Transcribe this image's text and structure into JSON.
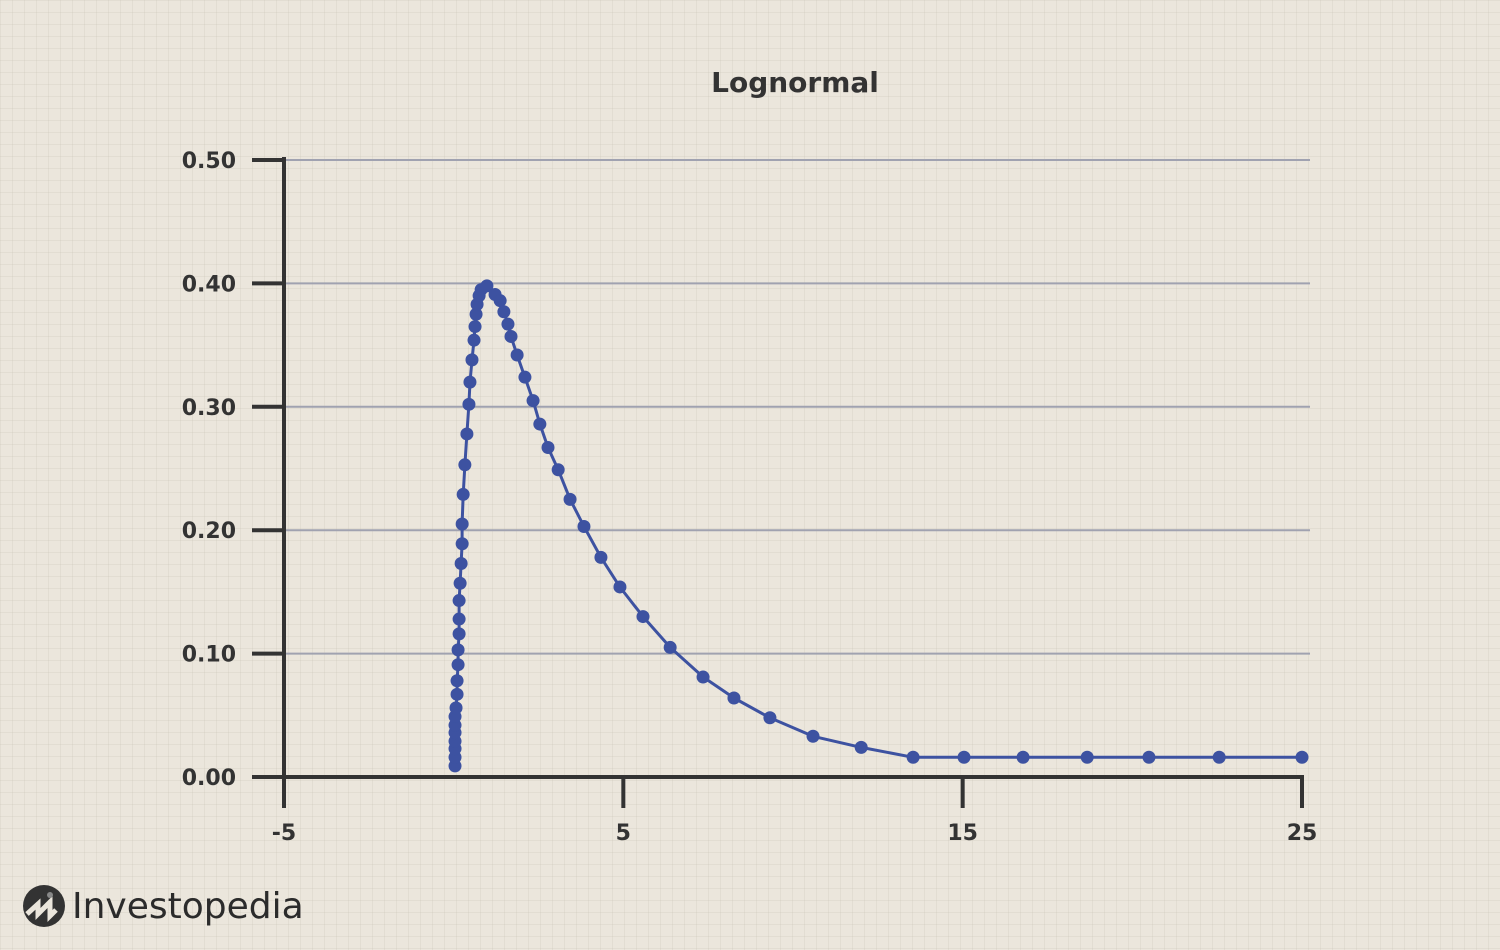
{
  "chart_data": {
    "type": "line",
    "title": "Lognormal",
    "xlabel": "",
    "ylabel": "",
    "xlim": [
      -5,
      25
    ],
    "ylim": [
      0,
      0.5
    ],
    "x_ticks": [
      "-5",
      "5",
      "15",
      "25"
    ],
    "x_tick_values": [
      -5,
      5,
      15,
      25
    ],
    "y_ticks": [
      "0.00",
      "0.10",
      "0.20",
      "0.30",
      "0.40",
      "0.50"
    ],
    "y_tick_values": [
      0,
      0.1,
      0.2,
      0.3,
      0.4,
      0.5
    ],
    "grid": "horizontal",
    "markers": true,
    "colors": {
      "series": "#3d52a1",
      "axis": "#333333",
      "grid": "#a0a2b0",
      "background": "#ebe6dc"
    },
    "series": [
      {
        "x": [
          0.04,
          0.04,
          0.04,
          0.04,
          0.04,
          0.04,
          0.04,
          0.07,
          0.1,
          0.1,
          0.13,
          0.13,
          0.16,
          0.16,
          0.16,
          0.19,
          0.22,
          0.25,
          0.25,
          0.28,
          0.33,
          0.39,
          0.45,
          0.48,
          0.54,
          0.6,
          0.63,
          0.66,
          0.69,
          0.75,
          0.81,
          0.98,
          1.22,
          1.37,
          1.48,
          1.6,
          1.69,
          1.87,
          2.1,
          2.34,
          2.54,
          2.78,
          3.08,
          3.43,
          3.84,
          4.34,
          4.9,
          5.58,
          6.38,
          7.35,
          8.26,
          9.32,
          10.59,
          12.01,
          13.54,
          15.04,
          16.78,
          18.67,
          20.49,
          22.56,
          25.0
        ],
        "y": [
          0.009,
          0.016,
          0.023,
          0.029,
          0.036,
          0.042,
          0.049,
          0.056,
          0.067,
          0.078,
          0.091,
          0.103,
          0.116,
          0.128,
          0.143,
          0.157,
          0.173,
          0.189,
          0.205,
          0.229,
          0.253,
          0.278,
          0.302,
          0.32,
          0.338,
          0.354,
          0.365,
          0.375,
          0.383,
          0.39,
          0.395,
          0.398,
          0.391,
          0.386,
          0.377,
          0.367,
          0.357,
          0.342,
          0.324,
          0.305,
          0.286,
          0.267,
          0.249,
          0.225,
          0.203,
          0.178,
          0.154,
          0.13,
          0.105,
          0.081,
          0.064,
          0.048,
          0.033,
          0.024,
          0.016,
          0.016,
          0.016,
          0.016,
          0.016,
          0.016,
          0.016
        ]
      }
    ]
  },
  "branding": {
    "logo_text": "Investopedia",
    "logo_icon": "investopedia-logo-icon"
  }
}
